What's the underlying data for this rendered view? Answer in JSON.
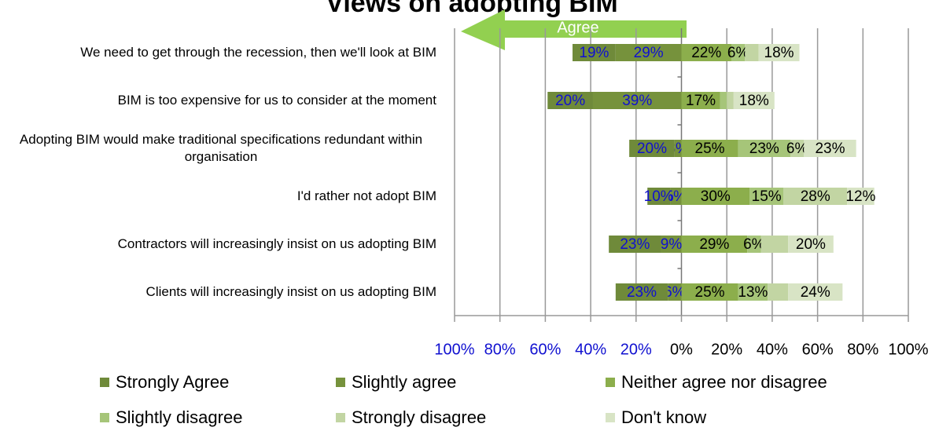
{
  "chart_data": {
    "type": "diverging-stacked-bar",
    "title": "Views on adopting BIM",
    "annotations": [
      "Agree"
    ],
    "categories": [
      "We need to get through the recession, then we'll look at BIM",
      "BIM is too expensive for us to consider at the moment",
      "Adopting BIM would make traditional specifications redundant within organisation",
      "I'd rather not adopt BIM",
      "Contractors will increasingly insist on us adopting BIM",
      "Clients will increasingly insist on us adopting BIM"
    ],
    "series": [
      {
        "name": "Strongly Agree",
        "color": "#6f8a3a",
        "values": [
          -19,
          -20,
          -20,
          -10,
          -23,
          -23
        ],
        "value_labels": [
          "19%",
          "20%",
          "20%",
          "10%",
          "23%",
          "23%"
        ]
      },
      {
        "name": "Slightly agree",
        "color": "#76923c",
        "values": [
          -29,
          -39,
          -3,
          -5,
          -9,
          -6
        ],
        "value_labels": [
          "29%",
          "39%",
          "3%",
          "5%",
          "9%",
          "6%"
        ]
      },
      {
        "name": "Neither agree nor disagree",
        "color": "#8cae4c",
        "values": [
          22,
          17,
          25,
          30,
          29,
          25
        ],
        "value_labels": [
          "22%",
          "17%",
          "25%",
          "30%",
          "29%",
          "25%"
        ]
      },
      {
        "name": "Slightly disagree",
        "color": "#a6c579",
        "values": [
          6,
          3,
          23,
          15,
          6,
          13
        ],
        "value_labels": [
          "6%",
          null,
          "23%",
          "15%",
          "6%",
          "13%"
        ]
      },
      {
        "name": "Strongly disagree",
        "color": "#c2d5a3",
        "values": [
          6,
          3,
          6,
          28,
          12,
          9
        ],
        "value_labels": [
          null,
          null,
          "6%",
          "28%",
          null,
          null
        ]
      },
      {
        "name": "Don't know",
        "color": "#d8e4c5",
        "values": [
          18,
          18,
          23,
          12,
          20,
          24
        ],
        "value_labels": [
          "18%",
          "18%",
          "23%",
          "12%",
          "20%",
          "24%"
        ]
      }
    ],
    "xlim": [
      -100,
      100
    ],
    "xticks": [
      {
        "value": -100,
        "label": "100%"
      },
      {
        "value": -80,
        "label": "80%"
      },
      {
        "value": -60,
        "label": "60%"
      },
      {
        "value": -40,
        "label": "40%"
      },
      {
        "value": -20,
        "label": "20%"
      },
      {
        "value": 0,
        "label": "0%"
      },
      {
        "value": 20,
        "label": "20%"
      },
      {
        "value": 40,
        "label": "40%"
      },
      {
        "value": 60,
        "label": "60%"
      },
      {
        "value": 80,
        "label": "80%"
      },
      {
        "value": 100,
        "label": "100%"
      }
    ],
    "grid": true
  }
}
